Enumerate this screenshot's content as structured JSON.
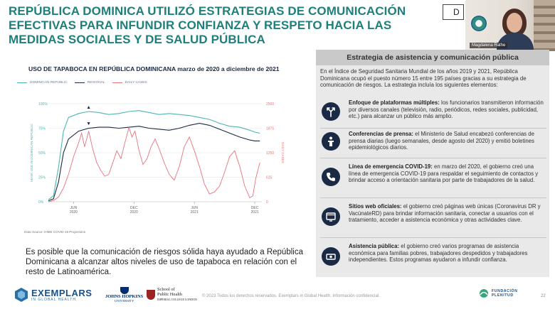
{
  "slide": {
    "title": "REPÚBLICA DOMINICA UTILIZÓ ESTRATEGIAS DE COMUNICACIÓN EFECTIVAS PARA INFUNDIR CONFIANZA Y RESPETO HACIA LAS MEDIDAS SOCIALES Y DE SALUD PÚBLICA",
    "tab_peek": "D",
    "caption": "Es posible que la comunicación de riesgos sólida haya ayudado a República Dominicana a alcanzar altos niveles de uso de tapaboca en relación con el resto de Latinoamérica."
  },
  "video": {
    "participant_name": "Magdalena Rathe"
  },
  "chart_data": {
    "type": "line",
    "title": "USO DE TAPABOCA EN REPÚBLICA DOMINICANA marzo de 2020 a diciembre de 2021",
    "ylabel_left": "MASK USE IN DOMINICAN REPUBLIC",
    "ylabel_right": "DAILY CASES",
    "left_ticks": [
      "100%",
      "75%",
      "50%",
      "25%",
      "0%"
    ],
    "right_ticks": [
      "2500",
      "1875",
      "1250",
      "625",
      "0"
    ],
    "ylim_left": [
      0,
      100
    ],
    "ylim_right": [
      0,
      2500
    ],
    "x_ticks": [
      {
        "month": "JUN",
        "year": "2020",
        "t": 2.5
      },
      {
        "month": "DEC",
        "year": "2020",
        "t": 8.5
      },
      {
        "month": "JUN",
        "year": "2021",
        "t": 14.5
      },
      {
        "month": "DEC",
        "year": "2021",
        "t": 20.5
      }
    ],
    "xlim": [
      0,
      21.2
    ],
    "source": "Data Source: IHME COVID-19 Projections",
    "colors": {
      "dr": "#4db6b0",
      "regional": "#1a2a44",
      "cases": "#e8727a"
    },
    "series": [
      {
        "name": "DOMINICAN REPUBLIC",
        "axis": "left",
        "x": [
          0,
          0.5,
          1,
          1.5,
          2,
          3,
          4,
          5,
          6,
          7,
          8,
          9,
          10,
          11,
          12,
          13,
          14,
          15,
          16,
          17,
          18,
          19,
          20,
          20.5,
          21
        ],
        "y": [
          2,
          6,
          35,
          72,
          86,
          90,
          92,
          91,
          89,
          90,
          92,
          93,
          91,
          89,
          90,
          89,
          88,
          86,
          84,
          80,
          77,
          76,
          73,
          71,
          70
        ]
      },
      {
        "name": "REGIONAL",
        "axis": "left",
        "x": [
          0,
          0.5,
          1,
          1.5,
          2,
          3,
          4,
          5,
          6,
          7,
          8,
          9,
          10,
          11,
          12,
          13,
          14,
          15,
          16,
          17,
          18,
          19,
          20,
          20.5,
          21
        ],
        "y": [
          1,
          3,
          20,
          50,
          64,
          72,
          75,
          76,
          76,
          75,
          76,
          77,
          75,
          74,
          73,
          75,
          78,
          80,
          78,
          74,
          70,
          66,
          63,
          62,
          62
        ]
      },
      {
        "name": "DAILY CASES",
        "axis": "right",
        "x": [
          0,
          0.5,
          1,
          1.5,
          2,
          2.5,
          3,
          3.3,
          3.6,
          4,
          4.4,
          4.8,
          5.2,
          5.6,
          6,
          6.4,
          6.8,
          7.2,
          7.6,
          8,
          8.3,
          8.6,
          9,
          9.4,
          9.8,
          10.2,
          10.6,
          11,
          11.5,
          12,
          12.5,
          13,
          13.5,
          14,
          14.5,
          15,
          15.5,
          16,
          16.5,
          17,
          17.5,
          18,
          18.5,
          19,
          19.5,
          20,
          20.3,
          20.6,
          21
        ],
        "y": [
          0,
          30,
          120,
          350,
          700,
          1150,
          1500,
          1750,
          1400,
          1800,
          1350,
          1000,
          800,
          650,
          700,
          1000,
          1300,
          1100,
          1500,
          1900,
          1650,
          1800,
          1300,
          950,
          1100,
          1400,
          1600,
          1350,
          1000,
          700,
          550,
          900,
          1400,
          1650,
          1300,
          900,
          450,
          200,
          250,
          400,
          750,
          1150,
          1300,
          900,
          400,
          100,
          150,
          600,
          1000
        ]
      }
    ]
  },
  "panel": {
    "header": "Estrategia de asistencia y comunicación pública",
    "intro": "En el Índice de Seguridad Sanitaria Mundial de los años 2019 y 2021, República Dominicana ocupó el puesto número 15 entre 195 países gracias a su estrategia de comunicación de riesgos. La estrategia incluía los siguientes elementos:",
    "items": [
      {
        "icon": "split-arrows-icon",
        "title": "Enfoque de plataformas múltiples:",
        "body": " los funcionarios transmitieron información por diversos canales (televisión, radio, periódicos, redes sociales, publicidad, etc.) para alcanzar un público más amplio."
      },
      {
        "icon": "podium-icon",
        "title": "Conferencias de prensa:",
        "body": " el Ministerio de Salud encabezó conferencias de prensa diarias (luego semanales, desde agosto del 2020) y emitió boletines epidemiológicos diarios."
      },
      {
        "icon": "phone-icon",
        "title": "Línea de emergencia COVID-19:",
        "body": " en marzo del 2020, el gobierno creó una línea de emergencia COVID-19 para respaldar el seguimiento de contactos y brindar acceso a orientación sanitaria por parte de trabajadores de la salud."
      },
      {
        "icon": "website-icon",
        "title": "Sitios web oficiales:",
        "body": " el gobierno creó páginas web únicas (Coronavirus DR y VacúnateRD) para brindar información sanitaria, conectar a usuarios con el tratamiento, acceder a asistencia económica y otras actividades clave."
      },
      {
        "icon": "money-icon",
        "title": "Asistencia pública:",
        "body": " el gobierno creó varios programas de asistencia económica para familias pobres, trabajadores despedidos y trabajadores independientes. Estos programas ayudaron a infundir confianza."
      }
    ]
  },
  "footer": {
    "exemplars_main": "EXEMPLARS",
    "exemplars_sub": "IN GLOBAL HEALTH",
    "jh_line1": "JOHNS HOPKINS",
    "jh_line2": "UNIVERSITY",
    "sph_line1": "School of",
    "sph_line2": "Public Health",
    "sph_line3": "IMPERIAL COLLEGE LONDON",
    "copyright": "© 2023 Todos los derechos reservados. Exemplars in Global Health. Información confidencial.",
    "fp_line1": "FUNDACIÓN",
    "fp_line2": "PLENITUD",
    "page_number": "22"
  }
}
